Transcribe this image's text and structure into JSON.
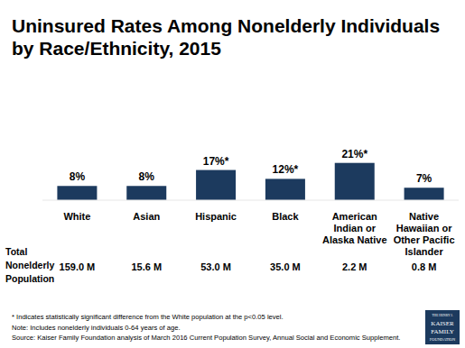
{
  "chart_data": {
    "type": "bar",
    "title": "Uninsured Rates Among Nonelderly Individuals by Race/Ethnicity, 2015",
    "categories": [
      "White",
      "Asian",
      "Hispanic",
      "Black",
      "American Indian or Alaska Native",
      "Native Hawaiian or Other Pacific Islander"
    ],
    "values": [
      8,
      8,
      17,
      12,
      21,
      7
    ],
    "value_labels": [
      "8%",
      "8%",
      "17%*",
      "12%*",
      "21%*",
      "7%"
    ],
    "color": "#1c3a5e",
    "ylim": [
      0,
      30
    ],
    "yticks": [],
    "data_labels": true,
    "tick_labels": "x",
    "population": {
      "label": "Total Nonelderly Population",
      "values": [
        159.0,
        15.6,
        53.0,
        35.0,
        2.2,
        0.8
      ],
      "value_labels": [
        "159.0 M",
        "15.6 M",
        "53.0 M",
        "35.0 M",
        "2.2 M",
        "0.8 M"
      ]
    },
    "footnotes": [
      "* Indicates statistically significant difference from the White population at the p<0.05 level.",
      "Note: Includes nonelderly individuals 0-64 years of age.",
      "Source: Kaiser Family Foundation analysis of March 2016 Current Population Survey, Annual Social and Economic Supplement."
    ],
    "logo": [
      "THE HENRY J.",
      "KAISER",
      "FAMILY",
      "FOUNDATION"
    ]
  }
}
